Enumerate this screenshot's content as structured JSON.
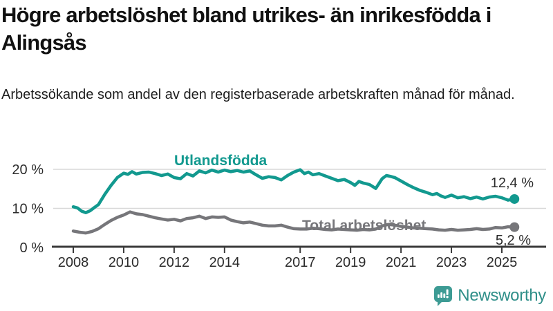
{
  "title": "Högre arbetslöshet bland utrikes- än inrikesfödda i Alingsås",
  "subtitle": "Arbetssökande som andel av den registerbaserade arbetskraften månad för månad.",
  "branding": {
    "logo_text": "Newsworthy",
    "logo_icon": "bar-chart-speech-bubble",
    "logo_icon_color": "#3d9b94",
    "logo_text_color": "#2f8f89"
  },
  "colors": {
    "accent_teal": "#12998f",
    "series_gray": "#76767a",
    "gridline": "#d8d8d8",
    "axis": "#3a3a3a",
    "text_dark": "#111111",
    "value_label": "#2b2b2b"
  },
  "chart_data": {
    "type": "line",
    "title": "Högre arbetslöshet bland utrikes- än inrikesfödda i Alingsås",
    "subtitle": "Arbetssökande som andel av den registerbaserade arbetskraften månad för månad.",
    "xlabel": "",
    "ylabel": "",
    "unit": "%",
    "grid": "horizontal-only",
    "legend_position": "inline-labels",
    "xlim": [
      2007.15,
      2026.75
    ],
    "ylim": [
      0,
      22
    ],
    "x_ticks": [
      2008,
      2010,
      2012,
      2014,
      2017,
      2019,
      2021,
      2023,
      2025
    ],
    "y_ticks": [
      {
        "value": 0,
        "label": "0 %"
      },
      {
        "value": 10,
        "label": "10 %"
      },
      {
        "value": 20,
        "label": "20 %"
      }
    ],
    "series": [
      {
        "name": "Utlandsfödda",
        "color": "#12998f",
        "end_value": 12.4,
        "end_label": "12,4 %",
        "points": [
          [
            2008.0,
            10.4
          ],
          [
            2008.17,
            10.1
          ],
          [
            2008.33,
            9.3
          ],
          [
            2008.5,
            8.9
          ],
          [
            2008.67,
            9.4
          ],
          [
            2008.83,
            10.2
          ],
          [
            2009.0,
            11.0
          ],
          [
            2009.25,
            13.6
          ],
          [
            2009.5,
            15.9
          ],
          [
            2009.75,
            17.9
          ],
          [
            2010.0,
            19.0
          ],
          [
            2010.17,
            18.7
          ],
          [
            2010.33,
            19.4
          ],
          [
            2010.5,
            18.8
          ],
          [
            2010.75,
            19.2
          ],
          [
            2011.0,
            19.3
          ],
          [
            2011.25,
            18.9
          ],
          [
            2011.5,
            18.4
          ],
          [
            2011.75,
            18.8
          ],
          [
            2012.0,
            17.9
          ],
          [
            2012.25,
            17.6
          ],
          [
            2012.5,
            18.9
          ],
          [
            2012.75,
            18.3
          ],
          [
            2013.0,
            19.6
          ],
          [
            2013.25,
            19.1
          ],
          [
            2013.5,
            19.8
          ],
          [
            2013.75,
            19.3
          ],
          [
            2014.0,
            19.8
          ],
          [
            2014.25,
            19.4
          ],
          [
            2014.5,
            19.7
          ],
          [
            2014.75,
            19.3
          ],
          [
            2015.0,
            19.6
          ],
          [
            2015.25,
            18.6
          ],
          [
            2015.5,
            17.7
          ],
          [
            2015.75,
            18.1
          ],
          [
            2016.0,
            17.9
          ],
          [
            2016.25,
            17.3
          ],
          [
            2016.5,
            18.4
          ],
          [
            2016.75,
            19.3
          ],
          [
            2017.0,
            19.9
          ],
          [
            2017.17,
            18.9
          ],
          [
            2017.33,
            19.3
          ],
          [
            2017.5,
            18.6
          ],
          [
            2017.75,
            18.9
          ],
          [
            2018.0,
            18.3
          ],
          [
            2018.25,
            17.7
          ],
          [
            2018.5,
            17.1
          ],
          [
            2018.75,
            17.4
          ],
          [
            2019.0,
            16.6
          ],
          [
            2019.17,
            15.9
          ],
          [
            2019.33,
            16.9
          ],
          [
            2019.5,
            16.5
          ],
          [
            2019.75,
            16.1
          ],
          [
            2020.0,
            15.1
          ],
          [
            2020.25,
            17.6
          ],
          [
            2020.42,
            18.4
          ],
          [
            2020.58,
            18.2
          ],
          [
            2020.75,
            17.9
          ],
          [
            2021.0,
            17.0
          ],
          [
            2021.25,
            16.1
          ],
          [
            2021.5,
            15.3
          ],
          [
            2021.75,
            14.6
          ],
          [
            2022.0,
            14.1
          ],
          [
            2022.25,
            13.5
          ],
          [
            2022.42,
            13.8
          ],
          [
            2022.58,
            13.2
          ],
          [
            2022.75,
            12.8
          ],
          [
            2023.0,
            13.4
          ],
          [
            2023.25,
            12.7
          ],
          [
            2023.5,
            13.0
          ],
          [
            2023.75,
            12.5
          ],
          [
            2024.0,
            12.9
          ],
          [
            2024.25,
            12.4
          ],
          [
            2024.5,
            12.9
          ],
          [
            2024.75,
            13.1
          ],
          [
            2025.0,
            12.7
          ],
          [
            2025.25,
            12.1
          ],
          [
            2025.5,
            12.4
          ]
        ]
      },
      {
        "name": "Total arbetslöshet",
        "color": "#76767a",
        "end_value": 5.2,
        "end_label": "5,2 %",
        "points": [
          [
            2008.0,
            4.2
          ],
          [
            2008.25,
            3.9
          ],
          [
            2008.5,
            3.7
          ],
          [
            2008.75,
            4.1
          ],
          [
            2009.0,
            4.8
          ],
          [
            2009.25,
            5.9
          ],
          [
            2009.5,
            6.9
          ],
          [
            2009.75,
            7.7
          ],
          [
            2010.0,
            8.3
          ],
          [
            2010.25,
            9.1
          ],
          [
            2010.5,
            8.6
          ],
          [
            2010.75,
            8.4
          ],
          [
            2011.0,
            8.0
          ],
          [
            2011.25,
            7.6
          ],
          [
            2011.5,
            7.3
          ],
          [
            2011.75,
            7.0
          ],
          [
            2012.0,
            7.2
          ],
          [
            2012.25,
            6.8
          ],
          [
            2012.5,
            7.4
          ],
          [
            2012.75,
            7.6
          ],
          [
            2013.0,
            8.0
          ],
          [
            2013.25,
            7.4
          ],
          [
            2013.5,
            7.8
          ],
          [
            2013.75,
            7.7
          ],
          [
            2014.0,
            7.8
          ],
          [
            2014.25,
            7.0
          ],
          [
            2014.5,
            6.6
          ],
          [
            2014.75,
            6.3
          ],
          [
            2015.0,
            6.5
          ],
          [
            2015.25,
            6.1
          ],
          [
            2015.5,
            5.7
          ],
          [
            2015.75,
            5.5
          ],
          [
            2016.0,
            5.5
          ],
          [
            2016.25,
            5.7
          ],
          [
            2016.5,
            5.2
          ],
          [
            2016.75,
            4.8
          ],
          [
            2017.0,
            4.7
          ],
          [
            2017.25,
            4.7
          ],
          [
            2017.5,
            4.9
          ],
          [
            2017.75,
            4.8
          ],
          [
            2018.0,
            4.6
          ],
          [
            2018.25,
            4.5
          ],
          [
            2018.5,
            4.7
          ],
          [
            2018.75,
            4.6
          ],
          [
            2019.0,
            4.5
          ],
          [
            2019.25,
            4.4
          ],
          [
            2019.5,
            4.6
          ],
          [
            2019.75,
            4.5
          ],
          [
            2020.0,
            4.7
          ],
          [
            2020.25,
            5.5
          ],
          [
            2020.5,
            5.9
          ],
          [
            2020.75,
            5.7
          ],
          [
            2021.0,
            5.4
          ],
          [
            2021.25,
            5.2
          ],
          [
            2021.5,
            5.0
          ],
          [
            2021.75,
            4.9
          ],
          [
            2022.0,
            4.8
          ],
          [
            2022.25,
            4.7
          ],
          [
            2022.5,
            4.5
          ],
          [
            2022.75,
            4.4
          ],
          [
            2023.0,
            4.6
          ],
          [
            2023.25,
            4.4
          ],
          [
            2023.5,
            4.5
          ],
          [
            2023.75,
            4.6
          ],
          [
            2024.0,
            4.8
          ],
          [
            2024.25,
            4.6
          ],
          [
            2024.5,
            4.7
          ],
          [
            2024.75,
            5.1
          ],
          [
            2025.0,
            5.0
          ],
          [
            2025.25,
            5.3
          ],
          [
            2025.5,
            5.2
          ]
        ]
      }
    ]
  }
}
